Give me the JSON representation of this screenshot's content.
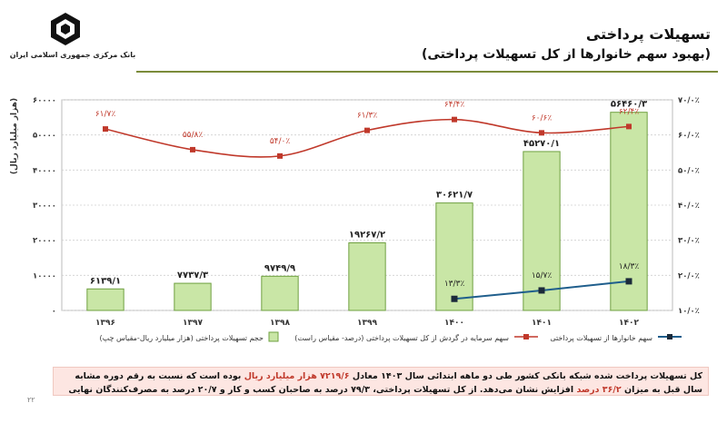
{
  "header": {
    "title": "تسهیلات پرداختی",
    "subtitle": "(بهبود سهم خانوارها از کل تسهیلات پرداختی)",
    "bank_name": "بانک مرکزی جمهوری اسلامی ایران"
  },
  "chart_data": {
    "type": "bar",
    "categories": [
      "۱۳۹۶",
      "۱۳۹۷",
      "۱۳۹۸",
      "۱۳۹۹",
      "۱۴۰۰",
      "۱۴۰۱",
      "۱۴۰۲"
    ],
    "bar_values": [
      6139.1,
      7737.3,
      9749.9,
      19267.2,
      30621.7,
      45270.1,
      56460.3
    ],
    "bar_labels": [
      "۶۱۳۹/۱",
      "۷۷۳۷/۳",
      "۹۷۴۹/۹",
      "۱۹۲۶۷/۲",
      "۳۰۶۲۱/۷",
      "۴۵۲۷۰/۱",
      "۵۶۴۶۰/۳"
    ],
    "line_red_values": [
      61.7,
      55.8,
      54.0,
      61.3,
      64.4,
      60.6,
      62.4
    ],
    "line_red_labels": [
      "۶۱/۷٪",
      "۵۵/۸٪",
      "۵۴/۰٪",
      "۶۱/۳٪",
      "۶۴/۴٪",
      "۶۰/۶٪",
      "۶۲/۴٪"
    ],
    "line_blue_values": [
      null,
      null,
      null,
      null,
      13.3,
      15.7,
      18.3
    ],
    "line_blue_labels": [
      "",
      "",
      "",
      "",
      "۱۳/۳٪",
      "۱۵/۷٪",
      "۱۸/۳٪"
    ],
    "ylabel_left": "(هزار میلیارد ریال)",
    "ylim_left": [
      0,
      60000
    ],
    "ylim_right": [
      10,
      70
    ],
    "left_ticks": [
      "۰",
      "۱۰۰۰۰",
      "۲۰۰۰۰",
      "۳۰۰۰۰",
      "۴۰۰۰۰",
      "۵۰۰۰۰",
      "۶۰۰۰۰"
    ],
    "right_ticks": [
      "۱۰/۰٪",
      "۲۰/۰٪",
      "۳۰/۰٪",
      "۴۰/۰٪",
      "۵۰/۰٪",
      "۶۰/۰٪",
      "۷۰/۰٪"
    ],
    "grid": true,
    "legend_position": "bottom",
    "legend": {
      "bars": "حجم تسهیلات پرداختی (هزار میلیارد ریال-مقیاس چپ)",
      "red": "سهم سرمایه در گردش از کل تسهیلات پرداختی (درصد- مقیاس راست)",
      "blue": "سهم خانوارها از تسهیلات پرداختی"
    },
    "colors": {
      "bar_fill": "#c9e6a6",
      "bar_stroke": "#6fa040",
      "red": "#c0392b",
      "blue": "#1f5e8c",
      "label": "#333333"
    }
  },
  "note": {
    "text_1": "کل تسهیلات پرداخت شده شبکه بانکی کشور طی دو ماهه ابتدائی سال ۱۴۰۳ معادل ",
    "highlight_1": "۷۲۱۹/۶ هزار میلیارد ریال",
    "text_2": " بوده است که نسبت به رقم دوره مشابه سال قبل به میزان ",
    "highlight_2": "۳۶/۲ درصد",
    "text_3": " افزایش نشان می‌دهد. از کل تسهیلات پرداختی، ۷۹/۳ درصد به صاحبان کسب و کار و ۲۰/۷ درصد به مصرف‌کنندگان نهایی تعلق داشته است."
  },
  "page_number": "۲۲"
}
